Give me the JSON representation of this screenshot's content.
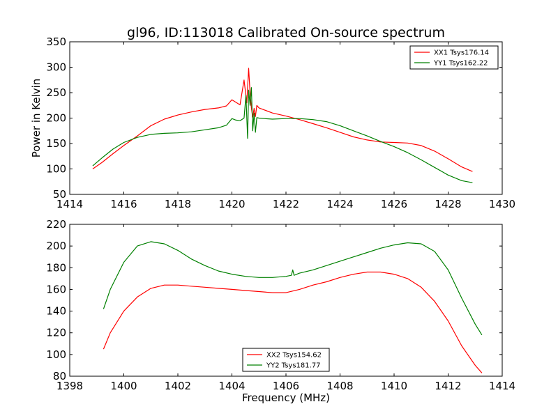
{
  "title": "gl96, ID:113018 Calibrated On-source spectrum",
  "colors": {
    "red": "#ff0000",
    "green": "#008000"
  },
  "chart_data": [
    {
      "type": "line",
      "title": "gl96, ID:113018 Calibrated On-source spectrum",
      "xlabel": "",
      "ylabel": "Power in Kelvin",
      "xlim": [
        1414,
        1430
      ],
      "ylim": [
        50,
        350
      ],
      "xticks": [
        1414,
        1416,
        1418,
        1420,
        1422,
        1424,
        1426,
        1428,
        1430
      ],
      "yticks": [
        50,
        100,
        150,
        200,
        250,
        300,
        350
      ],
      "grid": false,
      "legend_position": "top-right",
      "series": [
        {
          "name": "XX1 Tsys176.14",
          "color": "#ff0000",
          "x": [
            1414.85,
            1415.2,
            1415.6,
            1416.0,
            1416.5,
            1417.0,
            1417.5,
            1418.0,
            1418.5,
            1419.0,
            1419.5,
            1419.8,
            1420.0,
            1420.15,
            1420.3,
            1420.45,
            1420.55,
            1420.62,
            1420.67,
            1420.72,
            1420.77,
            1420.82,
            1420.87,
            1420.92,
            1421.0,
            1421.2,
            1421.5,
            1422.0,
            1422.5,
            1423.0,
            1423.5,
            1424.0,
            1424.5,
            1425.0,
            1425.5,
            1426.0,
            1426.5,
            1427.0,
            1427.5,
            1428.0,
            1428.5,
            1428.9
          ],
          "values": [
            100,
            113,
            130,
            146,
            165,
            185,
            198,
            206,
            212,
            217,
            220,
            224,
            236,
            231,
            226,
            275,
            230,
            298,
            250,
            220,
            202,
            219,
            203,
            225,
            220,
            216,
            210,
            204,
            197,
            189,
            181,
            172,
            163,
            157,
            153,
            152,
            151,
            146,
            135,
            120,
            104,
            95
          ]
        },
        {
          "name": "YY1 Tsys162.22",
          "color": "#008000",
          "x": [
            1414.85,
            1415.2,
            1415.6,
            1416.0,
            1416.5,
            1417.0,
            1417.5,
            1418.0,
            1418.5,
            1419.0,
            1419.5,
            1419.8,
            1420.0,
            1420.15,
            1420.3,
            1420.45,
            1420.52,
            1420.58,
            1420.62,
            1420.67,
            1420.72,
            1420.77,
            1420.82,
            1420.87,
            1420.92,
            1421.0,
            1421.2,
            1421.5,
            1422.0,
            1422.5,
            1423.0,
            1423.5,
            1424.0,
            1424.5,
            1425.0,
            1425.5,
            1426.0,
            1426.5,
            1427.0,
            1427.5,
            1428.0,
            1428.5,
            1428.9
          ],
          "values": [
            106,
            122,
            139,
            152,
            162,
            168,
            170,
            171,
            173,
            177,
            181,
            186,
            199,
            196,
            195,
            200,
            245,
            160,
            255,
            225,
            260,
            175,
            210,
            172,
            201,
            200,
            199,
            198,
            199,
            199,
            197,
            193,
            185,
            175,
            165,
            154,
            144,
            132,
            118,
            103,
            88,
            77,
            73
          ]
        }
      ]
    },
    {
      "type": "line",
      "title": "",
      "xlabel": "Frequency (MHz)",
      "ylabel": "",
      "xlim": [
        1398,
        1414
      ],
      "ylim": [
        80,
        220
      ],
      "xticks": [
        1398,
        1400,
        1402,
        1404,
        1406,
        1408,
        1410,
        1412,
        1414
      ],
      "yticks": [
        80,
        100,
        120,
        140,
        160,
        180,
        200,
        220
      ],
      "grid": false,
      "legend_position": "bottom-center",
      "series": [
        {
          "name": "XX2 Tsys154.62",
          "color": "#ff0000",
          "x": [
            1399.25,
            1399.5,
            1400.0,
            1400.5,
            1401.0,
            1401.5,
            1402.0,
            1402.5,
            1403.0,
            1403.5,
            1404.0,
            1404.5,
            1405.0,
            1405.5,
            1406.0,
            1406.5,
            1407.0,
            1407.5,
            1408.0,
            1408.5,
            1409.0,
            1409.5,
            1410.0,
            1410.5,
            1411.0,
            1411.5,
            1412.0,
            1412.5,
            1413.0,
            1413.25
          ],
          "values": [
            105,
            120,
            140,
            153,
            161,
            164,
            164,
            163,
            162,
            161,
            160,
            159,
            158,
            157,
            157,
            160,
            164,
            167,
            171,
            174,
            176,
            176,
            174,
            170,
            162,
            149,
            131,
            108,
            90,
            83
          ]
        },
        {
          "name": "YY2 Tsys181.77",
          "color": "#008000",
          "x": [
            1399.25,
            1399.5,
            1400.0,
            1400.5,
            1401.0,
            1401.5,
            1402.0,
            1402.5,
            1403.0,
            1403.5,
            1404.0,
            1404.5,
            1405.0,
            1405.5,
            1406.0,
            1406.2,
            1406.25,
            1406.3,
            1406.5,
            1407.0,
            1407.5,
            1408.0,
            1408.5,
            1409.0,
            1409.5,
            1410.0,
            1410.5,
            1411.0,
            1411.5,
            1412.0,
            1412.5,
            1413.0,
            1413.25
          ],
          "values": [
            142,
            160,
            185,
            200,
            204,
            202,
            196,
            188,
            182,
            177,
            174,
            172,
            171,
            171,
            172,
            173,
            178,
            173,
            175,
            178,
            182,
            186,
            190,
            194,
            198,
            201,
            203,
            202,
            195,
            178,
            152,
            128,
            118
          ]
        }
      ]
    }
  ]
}
